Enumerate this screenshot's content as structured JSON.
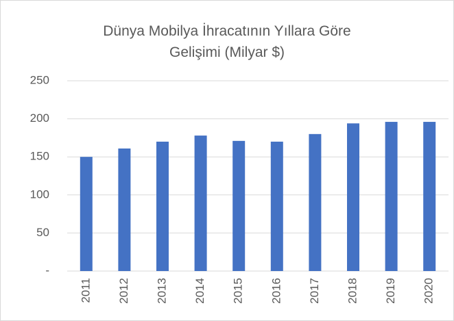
{
  "chart_data": {
    "type": "bar",
    "title": "Dünya Mobilya İhracatının Yıllara Göre Gelişimi (Milyar $)",
    "categories": [
      "2011",
      "2012",
      "2013",
      "2014",
      "2015",
      "2016",
      "2017",
      "2018",
      "2019",
      "2020"
    ],
    "values": [
      150,
      161,
      170,
      178,
      171,
      170,
      180,
      194,
      196,
      196
    ],
    "color": "#4472c4",
    "ylim": [
      0,
      250
    ],
    "yticks": [
      {
        "value": 0,
        "label": "-"
      },
      50,
      100,
      150,
      200,
      250
    ],
    "grid": true
  }
}
